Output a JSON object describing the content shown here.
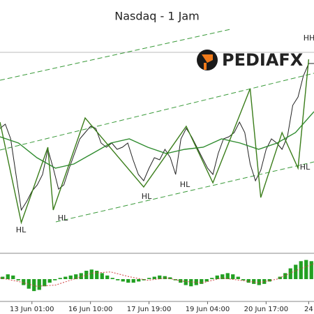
{
  "chart_data": [
    {
      "type": "line",
      "title": "Nasdaq - 1 Jam",
      "xlim": [
        0,
        59
      ],
      "ylim": [
        0,
        100
      ],
      "xticks": [
        {
          "value": 6,
          "label": "13 Jun 01:00"
        },
        {
          "value": 17,
          "label": "16 Jun 10:00"
        },
        {
          "value": 28,
          "label": "17 Jun 19:00"
        },
        {
          "value": 39,
          "label": "19 Jun 04:00"
        },
        {
          "value": 50,
          "label": "20 Jun 17:00"
        },
        {
          "value": 58,
          "label": "24"
        }
      ],
      "series": [
        {
          "color": "#222222",
          "values": [
            52,
            54,
            47,
            30,
            13,
            17,
            22,
            25,
            30,
            42,
            33,
            23,
            25,
            33,
            40,
            47,
            50,
            53,
            52,
            45,
            43,
            45,
            42,
            43,
            45,
            37,
            30,
            27,
            33,
            38,
            37,
            42,
            38,
            30,
            47,
            52,
            48,
            43,
            38,
            33,
            30,
            40,
            47,
            48,
            50,
            55,
            50,
            35,
            27,
            32,
            42,
            47,
            45,
            42,
            48,
            63,
            67,
            77,
            83,
            83
          ]
        },
        {
          "color": "#2e8b2e",
          "values": [
            48,
            45,
            38,
            33,
            35,
            40,
            45,
            47,
            43,
            40,
            42,
            43,
            47,
            45,
            42,
            45,
            50,
            60
          ]
        },
        {
          "color": "#3a7d1a",
          "x": [
            0,
            4,
            9,
            10,
            16,
            27,
            35,
            40,
            47,
            49,
            53,
            56,
            58
          ],
          "values": [
            55,
            7,
            43,
            13,
            57,
            24,
            53,
            26,
            71,
            19,
            50,
            33,
            85
          ]
        }
      ],
      "annotations": [
        "HL",
        "HL",
        "HL",
        "HL",
        "HL",
        "HH"
      ],
      "logo": "PEDIAFX"
    },
    {
      "type": "bar",
      "xlim": [
        0,
        59
      ],
      "ylim": [
        -35,
        35
      ],
      "color": "#22a022",
      "values": [
        4,
        8,
        6,
        -2,
        -10,
        -16,
        -20,
        -18,
        -12,
        -6,
        -2,
        2,
        4,
        6,
        8,
        10,
        14,
        16,
        14,
        10,
        6,
        2,
        -2,
        -4,
        -6,
        -6,
        -4,
        -2,
        2,
        4,
        6,
        5,
        3,
        -2,
        -6,
        -10,
        -12,
        -10,
        -8,
        -4,
        2,
        6,
        8,
        10,
        8,
        4,
        -2,
        -6,
        -8,
        -10,
        -8,
        -4,
        0,
        4,
        10,
        18,
        24,
        30,
        32,
        30
      ],
      "signal": {
        "color": "#d04040",
        "values": [
          2,
          -4,
          -12,
          -10,
          0,
          10,
          12,
          4,
          -2,
          2,
          -4,
          -6,
          2,
          -2,
          -6,
          0,
          14,
          26
        ]
      }
    }
  ]
}
